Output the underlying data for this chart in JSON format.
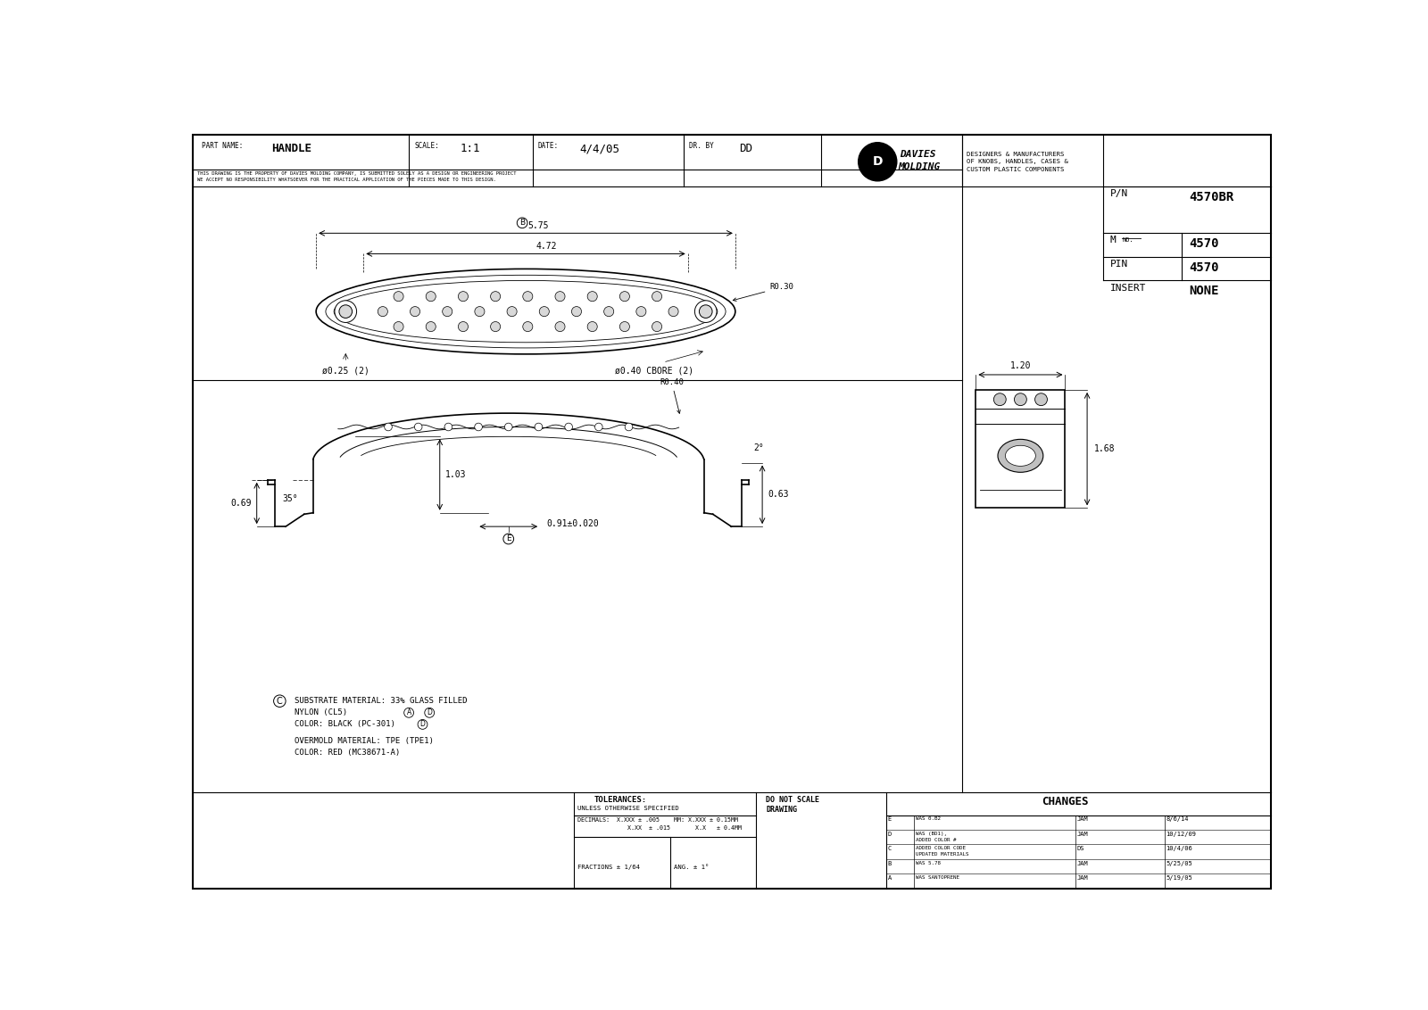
{
  "bg_color": "#ffffff",
  "line_color": "#000000",
  "title_block": {
    "part_name": "HANDLE",
    "scale": "1:1",
    "date": "4/4/05",
    "dr_by": "DD",
    "disclaimer_line1": "THIS DRAWING IS THE PROPERTY OF DAVIES MOLDING COMPANY, IS SUBMITTED SOLELY AS A DESIGN OR ENGINEERING PROJECT",
    "disclaimer_line2": "WE ACCEPT NO RESPONSIBILITY WHATSOEVER FOR THE PRACTICAL APPLICATION OF THE PIECES MADE TO THIS DESIGN.",
    "pn": "4570BR",
    "mno": "4570",
    "pin": "4570",
    "insert": "NONE"
  },
  "notes": [
    "SUBSTRATE MATERIAL: 33% GLASS FILLED",
    "NYLON (CL5)",
    "COLOR: BLACK (PC-301)",
    "OVERMOLD MATERIAL: TPE (TPE1)",
    "COLOR: RED (MC38671-A)"
  ],
  "tolerances": {
    "header1": "TOLERANCES:",
    "header2": "UNLESS OTHERWISE SPECIFIED",
    "dec1": "DECIMALS:  X.XXX ± .005",
    "dec2": "              X.XX  ± .015",
    "frac": "FRACTIONS ± 1/64",
    "mm1": "MM: X.XXX ± 0.15MM",
    "mm2": "      X.X   ± 0.4MM",
    "ang": "ANG. ± 1°",
    "dns1": "DO NOT SCALE",
    "dns2": "DRAWING"
  },
  "changes": [
    [
      "E",
      "WAS 0.B2",
      "JAM",
      "8/6/14"
    ],
    [
      "D",
      "WAS (BD1),\nADDED COLOR #",
      "JAM",
      "10/12/09"
    ],
    [
      "C",
      "ADDED COLOR CODE\nUPDATED MATERIALS",
      "DS",
      "10/4/06"
    ],
    [
      "B",
      "WAS 5.78",
      "JAM",
      "5/25/05"
    ],
    [
      "A",
      "WAS SANTOPRENE",
      "JAM",
      "5/19/05"
    ]
  ],
  "dims": {
    "top_width1": "5.75",
    "top_width2": "4.72",
    "hole_left": "ø0.25 (2)",
    "hole_right": "ø0.40 CBORE (2)",
    "radius_top": "R0.30",
    "radius_side": "R0.40",
    "side_angle": "35°",
    "height1": "0.69",
    "height2": "1.03",
    "right_dim1": "2°",
    "right_dim2": "0.63",
    "bottom_dim": "0.91±0.020",
    "iso_width": "1.20",
    "iso_height": "1.68"
  }
}
